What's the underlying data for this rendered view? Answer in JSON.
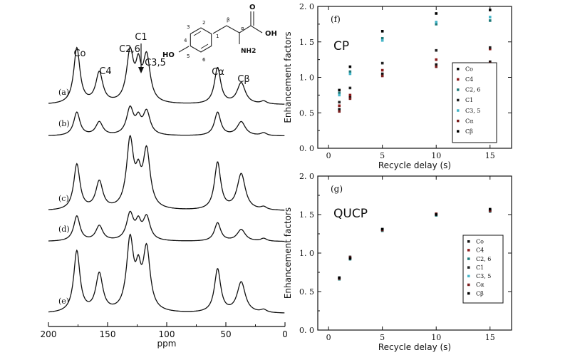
{
  "chart_data": [
    {
      "type": "line",
      "panel": "nmr-spectra",
      "xlabel": "ppm",
      "xlim": [
        200,
        0
      ],
      "x_ticks": [
        "200",
        "150",
        "100",
        "50",
        "0"
      ],
      "peak_labels": [
        "Co",
        "C4",
        "C2,6",
        "C1",
        "C3,5",
        "Cα",
        "Cβ"
      ],
      "peak_positions_ppm": [
        176,
        157,
        131,
        124,
        117,
        57,
        37
      ],
      "trace_labels": [
        "(a)",
        "(b)",
        "(c)",
        "(d)",
        "(e)"
      ],
      "series": [
        {
          "name": "(a)",
          "intensities": [
            1.0,
            0.55,
            0.9,
            0.55,
            0.82,
            0.65,
            0.38
          ]
        },
        {
          "name": "(b)",
          "intensities": [
            0.42,
            0.24,
            0.48,
            0.24,
            0.42,
            0.42,
            0.25
          ]
        },
        {
          "name": "(c)",
          "intensities": [
            0.82,
            0.5,
            1.22,
            0.45,
            1.03,
            0.85,
            0.65
          ]
        },
        {
          "name": "(d)",
          "intensities": [
            0.45,
            0.27,
            0.48,
            0.27,
            0.42,
            0.33,
            0.21
          ]
        },
        {
          "name": "(e)",
          "intensities": [
            1.1,
            0.68,
            1.27,
            0.55,
            1.1,
            0.78,
            0.55
          ]
        }
      ],
      "arrow_label": "C1"
    },
    {
      "type": "scatter",
      "panel_label": "(f)",
      "title": "CP",
      "xlabel": "Recycle delay (s)",
      "ylabel": "Enhancement factors",
      "xlim": [
        -1,
        17
      ],
      "ylim": [
        0,
        2.0
      ],
      "x_ticks": [
        "0",
        "5",
        "10",
        "15"
      ],
      "y_ticks": [
        "0. 0",
        "0. 5",
        "1. 0",
        "1. 5",
        "2. 0"
      ],
      "x": [
        1,
        2,
        5,
        10,
        15
      ],
      "legend_position": "bottom-right",
      "series": [
        {
          "name": "Co",
          "color": "#111111",
          "values": [
            0.55,
            0.72,
            1.05,
            1.18,
            1.22
          ]
        },
        {
          "name": "C4",
          "color": "#8b1a1a",
          "values": [
            0.6,
            0.75,
            1.1,
            1.25,
            1.4
          ]
        },
        {
          "name": "C2, 6",
          "color": "#1f7a7a",
          "values": [
            0.78,
            1.08,
            1.55,
            1.75,
            1.8
          ]
        },
        {
          "name": "C1",
          "color": "#222222",
          "values": [
            0.65,
            0.85,
            1.2,
            1.38,
            1.42
          ]
        },
        {
          "name": "C3, 5",
          "color": "#46b5c8",
          "values": [
            0.75,
            1.05,
            1.52,
            1.78,
            1.85
          ]
        },
        {
          "name": "Cα",
          "color": "#7a1e1e",
          "values": [
            0.52,
            0.7,
            1.02,
            1.15,
            1.2
          ]
        },
        {
          "name": "Cβ",
          "color": "#000000",
          "values": [
            0.82,
            1.15,
            1.65,
            1.9,
            1.95
          ]
        }
      ]
    },
    {
      "type": "scatter",
      "panel_label": "(g)",
      "title": "QUCP",
      "xlabel": "Recycle delay (s)",
      "ylabel": "Enhancement factors",
      "xlim": [
        -1,
        17
      ],
      "ylim": [
        0,
        2.0
      ],
      "x_ticks": [
        "0",
        "5",
        "10",
        "15"
      ],
      "y_ticks": [
        "0. 0",
        "0. 5",
        "1. 0",
        "1. 5",
        "2. 0"
      ],
      "x": [
        1,
        2,
        5,
        10,
        15
      ],
      "legend_position": "bottom-right",
      "series": [
        {
          "name": "Co",
          "color": "#111111",
          "values": [
            0.67,
            0.93,
            1.3,
            1.5,
            1.55
          ]
        },
        {
          "name": "C4",
          "color": "#8b1a1a",
          "values": [
            0.68,
            0.94,
            1.31,
            1.51,
            1.56
          ]
        },
        {
          "name": "C2, 6",
          "color": "#1f7a7a",
          "values": [
            0.66,
            0.92,
            1.29,
            1.49,
            1.54
          ]
        },
        {
          "name": "C1",
          "color": "#222222",
          "values": [
            0.67,
            0.95,
            1.3,
            1.5,
            1.55
          ]
        },
        {
          "name": "C3, 5",
          "color": "#46b5c8",
          "values": [
            0.68,
            0.93,
            1.31,
            1.5,
            1.56
          ]
        },
        {
          "name": "Cα",
          "color": "#7a1e1e",
          "values": [
            0.67,
            0.94,
            1.3,
            1.51,
            1.55
          ]
        },
        {
          "name": "Cβ",
          "color": "#000000",
          "values": [
            0.68,
            0.93,
            1.31,
            1.5,
            1.57
          ]
        }
      ]
    }
  ],
  "molecule": {
    "labels": [
      "HO",
      "OH",
      "O",
      "NH2",
      "β",
      "α",
      "4",
      "3",
      "5",
      "1",
      "2",
      "6"
    ]
  }
}
